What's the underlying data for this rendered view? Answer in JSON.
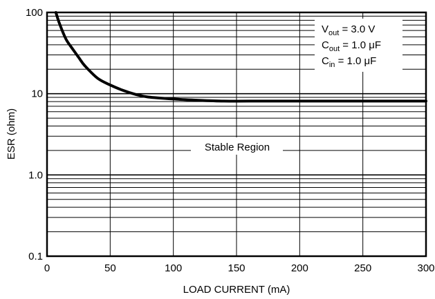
{
  "chart_data": {
    "type": "line",
    "title": "",
    "xlabel": "LOAD CURRENT (mA)",
    "ylabel": "ESR (ohm)",
    "x_scale": "linear",
    "y_scale": "log",
    "xlim": [
      0,
      300
    ],
    "ylim": [
      0.1,
      100
    ],
    "x_ticks": [
      0,
      50,
      100,
      150,
      200,
      250,
      300
    ],
    "x_tick_labels": [
      "0",
      "50",
      "100",
      "150",
      "200",
      "250",
      "300"
    ],
    "y_ticks": [
      0.1,
      1,
      10,
      100
    ],
    "y_tick_labels": [
      "0.1",
      "1.0",
      "10",
      "100"
    ],
    "grid": true,
    "series": [
      {
        "x": [
          7,
          10,
          15,
          20,
          25,
          30,
          40,
          50,
          60,
          70,
          80,
          100,
          120,
          140,
          160,
          200,
          250,
          300
        ],
        "y": [
          100,
          72,
          47,
          36,
          28,
          22,
          15.5,
          12.8,
          11,
          9.8,
          9.1,
          8.6,
          8.3,
          8.1,
          8.1,
          8.1,
          8.1,
          8.1
        ]
      }
    ],
    "annotations": {
      "region_label": "Stable Region",
      "conditions": [
        {
          "main": "V",
          "sub": "out",
          "rest": " = 3.0 V"
        },
        {
          "main": "C",
          "sub": "out",
          "rest": " = 1.0 μF"
        },
        {
          "main": "C",
          "sub": "in",
          "rest": " = 1.0 μF"
        }
      ]
    }
  }
}
